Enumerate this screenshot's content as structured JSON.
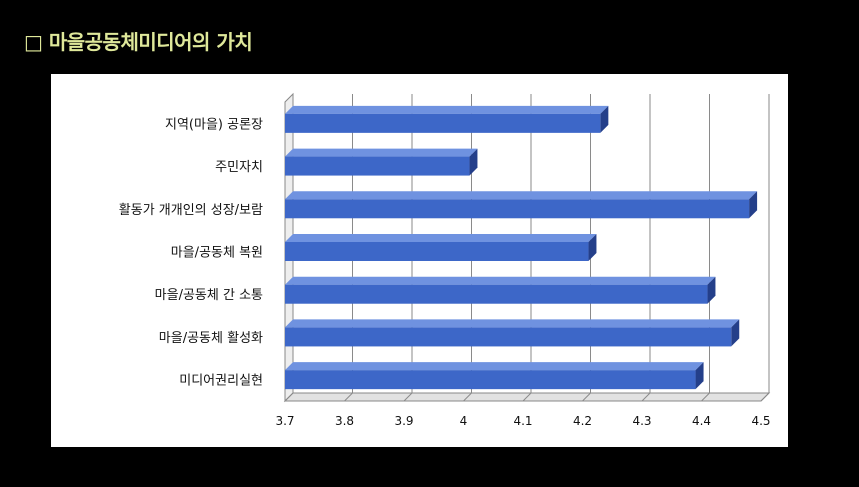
{
  "title": "□ 마을공동체미디어의 가치",
  "chart_data": {
    "type": "bar",
    "orientation": "horizontal",
    "categories": [
      "지역(마을) 공론장",
      "주민자치",
      "활동가 개개인의 성장/보람",
      "마을/공동체 복원",
      "마을/공동체 간 소통",
      "마을/공동체 활성화",
      "미디어권리실현"
    ],
    "values": [
      4.23,
      4.01,
      4.48,
      4.21,
      4.41,
      4.45,
      4.39
    ],
    "xlim": [
      3.7,
      4.5
    ],
    "xticks": [
      "3.7",
      "3.8",
      "3.9",
      "4",
      "4.1",
      "4.2",
      "4.3",
      "4.4",
      "4.5"
    ],
    "grid": true,
    "bar_color": "#3d67c8",
    "bar_dark_color": "#243f8a",
    "bar_light_color": "#6f92e0"
  }
}
